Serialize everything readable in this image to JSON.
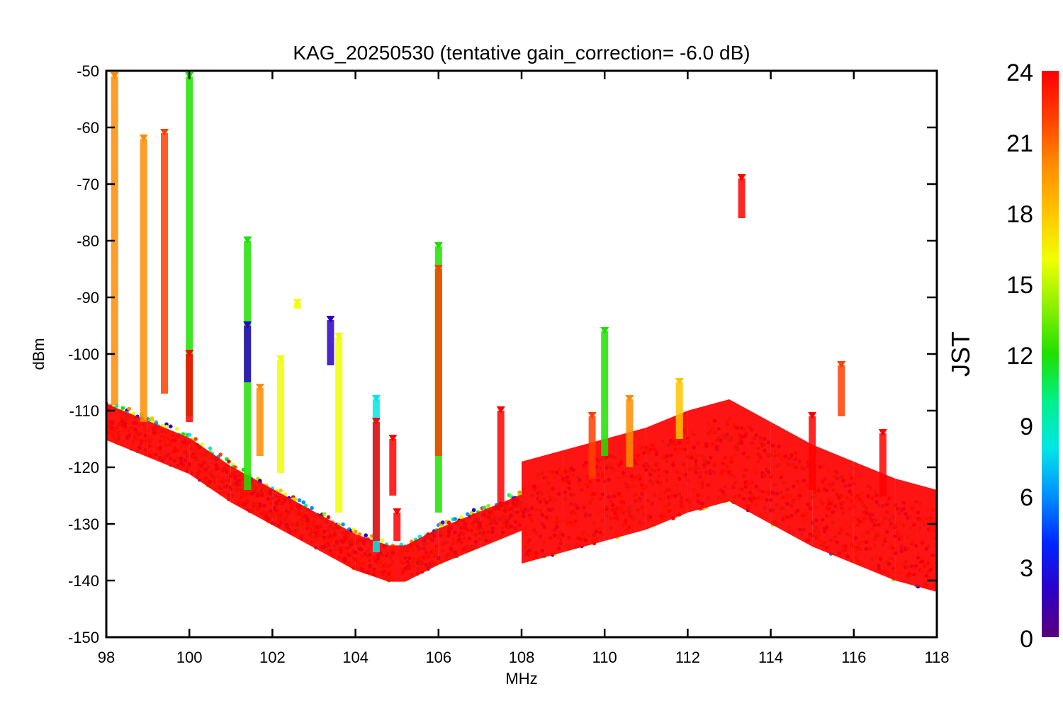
{
  "chart_data": {
    "type": "scatter",
    "title": "KAG_20250530 (tentative gain_correction= -6.0 dB)",
    "xlabel": "MHz",
    "ylabel": "dBm",
    "xlim": [
      98,
      118
    ],
    "ylim": [
      -150,
      -50
    ],
    "x_ticks": [
      98,
      100,
      102,
      104,
      106,
      108,
      110,
      112,
      114,
      116,
      118
    ],
    "y_ticks": [
      -50,
      -60,
      -70,
      -80,
      -90,
      -100,
      -110,
      -120,
      -130,
      -140,
      -150
    ],
    "colorbar": {
      "label": "JST",
      "range": [
        0,
        24
      ],
      "ticks": [
        0,
        3,
        6,
        9,
        12,
        15,
        18,
        21,
        24
      ],
      "colormap": "rainbow",
      "colors": [
        "#5a007d",
        "#2b00c8",
        "#0026ff",
        "#0090ff",
        "#00e6e6",
        "#00f08a",
        "#1ee000",
        "#8cf000",
        "#f0ff00",
        "#ffc400",
        "#ff8c00",
        "#ff4000",
        "#ff0000"
      ]
    },
    "noise_floor_series": [
      {
        "x": 98.0,
        "y": -112
      },
      {
        "x": 99.0,
        "y": -115
      },
      {
        "x": 100.0,
        "y": -118
      },
      {
        "x": 101.0,
        "y": -123
      },
      {
        "x": 102.0,
        "y": -127
      },
      {
        "x": 103.0,
        "y": -131
      },
      {
        "x": 104.0,
        "y": -135
      },
      {
        "x": 104.8,
        "y": -137
      },
      {
        "x": 105.2,
        "y": -137
      },
      {
        "x": 106.0,
        "y": -134
      },
      {
        "x": 107.0,
        "y": -131
      },
      {
        "x": 108.0,
        "y": -128
      },
      {
        "x": 109.0,
        "y": -126
      },
      {
        "x": 110.0,
        "y": -124
      },
      {
        "x": 111.0,
        "y": -122
      },
      {
        "x": 112.0,
        "y": -119
      },
      {
        "x": 113.0,
        "y": -117
      },
      {
        "x": 114.0,
        "y": -121
      },
      {
        "x": 115.0,
        "y": -125
      },
      {
        "x": 116.0,
        "y": -128
      },
      {
        "x": 117.0,
        "y": -131
      },
      {
        "x": 118.0,
        "y": -133
      }
    ],
    "signals": [
      {
        "x": 98.2,
        "y_top": -51,
        "y_bottom": -109,
        "jst": 20
      },
      {
        "x": 98.9,
        "y_top": -62,
        "y_bottom": -112,
        "jst": 19
      },
      {
        "x": 99.4,
        "y_top": -61,
        "y_bottom": -107,
        "jst": 21
      },
      {
        "x": 100.0,
        "y_top": -51,
        "y_bottom": -111,
        "jst": 11
      },
      {
        "x": 100.0,
        "y_top": -100,
        "y_bottom": -112,
        "jst": 23
      },
      {
        "x": 101.4,
        "y_top": -80,
        "y_bottom": -124,
        "jst": 11
      },
      {
        "x": 101.4,
        "y_top": -95,
        "y_bottom": -105,
        "jst": 1
      },
      {
        "x": 101.7,
        "y_top": -106,
        "y_bottom": -118,
        "jst": 20
      },
      {
        "x": 102.2,
        "y_top": -101,
        "y_bottom": -121,
        "jst": 15
      },
      {
        "x": 102.6,
        "y_top": -91,
        "y_bottom": -92,
        "jst": 16
      },
      {
        "x": 103.4,
        "y_top": -94,
        "y_bottom": -102,
        "jst": 1
      },
      {
        "x": 103.6,
        "y_top": -97,
        "y_bottom": -128,
        "jst": 15
      },
      {
        "x": 104.5,
        "y_top": -108,
        "y_bottom": -135,
        "jst": 7
      },
      {
        "x": 104.5,
        "y_top": -112,
        "y_bottom": -133,
        "jst": 23
      },
      {
        "x": 104.9,
        "y_top": -115,
        "y_bottom": -125,
        "jst": 23
      },
      {
        "x": 105.0,
        "y_top": -128,
        "y_bottom": -133,
        "jst": 23
      },
      {
        "x": 106.0,
        "y_top": -81,
        "y_bottom": -128,
        "jst": 11
      },
      {
        "x": 106.0,
        "y_top": -85,
        "y_bottom": -118,
        "jst": 21
      },
      {
        "x": 107.5,
        "y_top": -110,
        "y_bottom": -127,
        "jst": 23
      },
      {
        "x": 109.7,
        "y_top": -111,
        "y_bottom": -122,
        "jst": 21
      },
      {
        "x": 110.0,
        "y_top": -96,
        "y_bottom": -118,
        "jst": 11
      },
      {
        "x": 110.6,
        "y_top": -108,
        "y_bottom": -120,
        "jst": 20
      },
      {
        "x": 111.8,
        "y_top": -105,
        "y_bottom": -115,
        "jst": 18
      },
      {
        "x": 113.3,
        "y_top": -69,
        "y_bottom": -76,
        "jst": 23
      },
      {
        "x": 115.0,
        "y_top": -111,
        "y_bottom": -124,
        "jst": 23
      },
      {
        "x": 115.7,
        "y_top": -102,
        "y_bottom": -111,
        "jst": 21
      },
      {
        "x": 116.7,
        "y_top": -114,
        "y_bottom": -125,
        "jst": 23
      }
    ]
  }
}
